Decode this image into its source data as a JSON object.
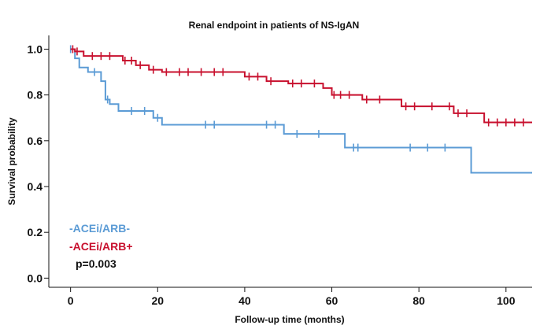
{
  "chart_data": {
    "type": "line",
    "subtype": "kaplan-meier step",
    "title": "Renal endpoint in patients of NS-IgAN",
    "xlabel": "Follow-up time (months)",
    "ylabel": "Survival probability",
    "xlim": [
      -5,
      106
    ],
    "ylim": [
      -0.04,
      1.06
    ],
    "xticks": [
      0,
      20,
      40,
      60,
      80,
      100
    ],
    "yticks": [
      0.0,
      0.2,
      0.4,
      0.6,
      0.8,
      1.0
    ],
    "xtick_labels": [
      "0",
      "20",
      "40",
      "60",
      "80",
      "100"
    ],
    "ytick_labels": [
      "0.0",
      "0.2",
      "0.4",
      "0.6",
      "0.8",
      "1.0"
    ],
    "grid": false,
    "legend_position": "bottom-left",
    "annotation": "p=0.003",
    "series": [
      {
        "name": "-ACEi/ARB-",
        "color": "#5b9bd5",
        "steps": [
          [
            0,
            1.0
          ],
          [
            1,
            0.96
          ],
          [
            2,
            0.92
          ],
          [
            4,
            0.9
          ],
          [
            7,
            0.86
          ],
          [
            8,
            0.78
          ],
          [
            9,
            0.76
          ],
          [
            11,
            0.73
          ],
          [
            19,
            0.7
          ],
          [
            21,
            0.67
          ],
          [
            49,
            0.63
          ],
          [
            63,
            0.57
          ],
          [
            92,
            0.46
          ],
          [
            106,
            0.46
          ]
        ],
        "censored": [
          [
            0,
            1.0
          ],
          [
            5.5,
            0.9
          ],
          [
            8.5,
            0.78
          ],
          [
            14,
            0.73
          ],
          [
            17,
            0.73
          ],
          [
            20,
            0.7
          ],
          [
            31,
            0.67
          ],
          [
            33,
            0.67
          ],
          [
            45,
            0.67
          ],
          [
            47,
            0.67
          ],
          [
            52,
            0.63
          ],
          [
            57,
            0.63
          ],
          [
            65,
            0.57
          ],
          [
            66,
            0.57
          ],
          [
            78,
            0.57
          ],
          [
            82,
            0.57
          ],
          [
            86,
            0.57
          ]
        ]
      },
      {
        "name": "-ACEi/ARB+",
        "color": "#c8102e",
        "steps": [
          [
            0,
            1.0
          ],
          [
            1,
            0.99
          ],
          [
            3,
            0.97
          ],
          [
            12,
            0.95
          ],
          [
            15,
            0.93
          ],
          [
            18,
            0.91
          ],
          [
            21,
            0.9
          ],
          [
            40,
            0.88
          ],
          [
            45,
            0.86
          ],
          [
            50,
            0.85
          ],
          [
            58,
            0.83
          ],
          [
            60,
            0.8
          ],
          [
            67,
            0.78
          ],
          [
            76,
            0.75
          ],
          [
            88,
            0.72
          ],
          [
            95,
            0.68
          ],
          [
            106,
            0.68
          ]
        ],
        "censored": [
          [
            0.5,
            1.0
          ],
          [
            1.5,
            0.99
          ],
          [
            5,
            0.97
          ],
          [
            7,
            0.97
          ],
          [
            9,
            0.97
          ],
          [
            12.5,
            0.95
          ],
          [
            14,
            0.95
          ],
          [
            16,
            0.93
          ],
          [
            19,
            0.91
          ],
          [
            22,
            0.9
          ],
          [
            25,
            0.9
          ],
          [
            27,
            0.9
          ],
          [
            30,
            0.9
          ],
          [
            33,
            0.9
          ],
          [
            35,
            0.9
          ],
          [
            41,
            0.88
          ],
          [
            43,
            0.88
          ],
          [
            46,
            0.86
          ],
          [
            51,
            0.85
          ],
          [
            53,
            0.85
          ],
          [
            56,
            0.85
          ],
          [
            60.5,
            0.8
          ],
          [
            62,
            0.8
          ],
          [
            64,
            0.8
          ],
          [
            68,
            0.78
          ],
          [
            71,
            0.78
          ],
          [
            77,
            0.75
          ],
          [
            79,
            0.75
          ],
          [
            83,
            0.75
          ],
          [
            87,
            0.75
          ],
          [
            89,
            0.72
          ],
          [
            91,
            0.72
          ],
          [
            96,
            0.68
          ],
          [
            98,
            0.68
          ],
          [
            100,
            0.68
          ],
          [
            102,
            0.68
          ],
          [
            104,
            0.68
          ]
        ]
      }
    ]
  }
}
